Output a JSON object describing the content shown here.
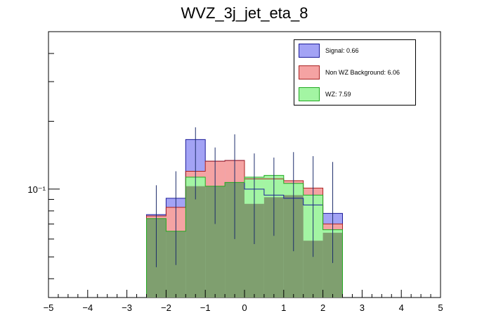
{
  "chart_data": {
    "type": "bar",
    "title": "WVZ_3j_jet_eta_8",
    "xlabel": "",
    "ylabel": "",
    "xlim": [
      -5,
      5
    ],
    "ylog": true,
    "ylim": [
      0.033,
      0.5
    ],
    "x_ticks": [
      -5,
      -4,
      -3,
      -2,
      -1,
      0,
      1,
      2,
      3,
      4,
      5
    ],
    "x_tick_labels": [
      "−5",
      "−4",
      "−3",
      "−2",
      "−1",
      "0",
      "1",
      "2",
      "3",
      "4",
      "5"
    ],
    "y_tick_label": "10⁻¹",
    "bin_edges": [
      -2.5,
      -2.0,
      -1.5,
      -1.0,
      -0.5,
      0.0,
      0.5,
      1.0,
      1.5,
      2.0,
      2.5
    ],
    "series": [
      {
        "name": "Signal: 0.66",
        "stack_top": [
          0.077,
          0.091,
          0.166,
          0.133,
          0.134,
          0.1,
          0.094,
          0.091,
          0.085,
          0.078
        ],
        "fill": "#a3a3f5",
        "stroke": "#1c1c99"
      },
      {
        "name": "Non WZ Background: 6.06",
        "stack_top": [
          0.076,
          0.083,
          0.12,
          0.133,
          0.134,
          0.111,
          0.111,
          0.109,
          0.101,
          0.07
        ],
        "fill": "#f5a3a3",
        "stroke": "#aa2222"
      },
      {
        "name": "WZ: 7.59",
        "stack_top": [
          0.074,
          0.065,
          0.113,
          0.103,
          0.107,
          0.113,
          0.115,
          0.106,
          0.094,
          0.066
        ],
        "fill": "#a3f5a3",
        "stroke": "#22aa22"
      }
    ],
    "overlap_fill": "#7f9f6f",
    "overlap_top": [
      0.074,
      0.065,
      0.103,
      0.103,
      0.107,
      0.086,
      0.092,
      0.094,
      0.059,
      0.064
    ],
    "error_bars": [
      {
        "x": -2.25,
        "lo": 0.045,
        "hi": 0.104
      },
      {
        "x": -1.75,
        "lo": 0.046,
        "hi": 0.12
      },
      {
        "x": -1.25,
        "lo": 0.09,
        "hi": 0.188
      },
      {
        "x": -0.75,
        "lo": 0.07,
        "hi": 0.153
      },
      {
        "x": -0.25,
        "lo": 0.06,
        "hi": 0.175
      },
      {
        "x": 0.25,
        "lo": 0.057,
        "hi": 0.144
      },
      {
        "x": 0.75,
        "lo": 0.062,
        "hi": 0.138
      },
      {
        "x": 1.25,
        "lo": 0.053,
        "hi": 0.146
      },
      {
        "x": 1.75,
        "lo": 0.05,
        "hi": 0.14
      },
      {
        "x": 2.25,
        "lo": 0.047,
        "hi": 0.132
      }
    ],
    "legend_position": "top-right"
  }
}
